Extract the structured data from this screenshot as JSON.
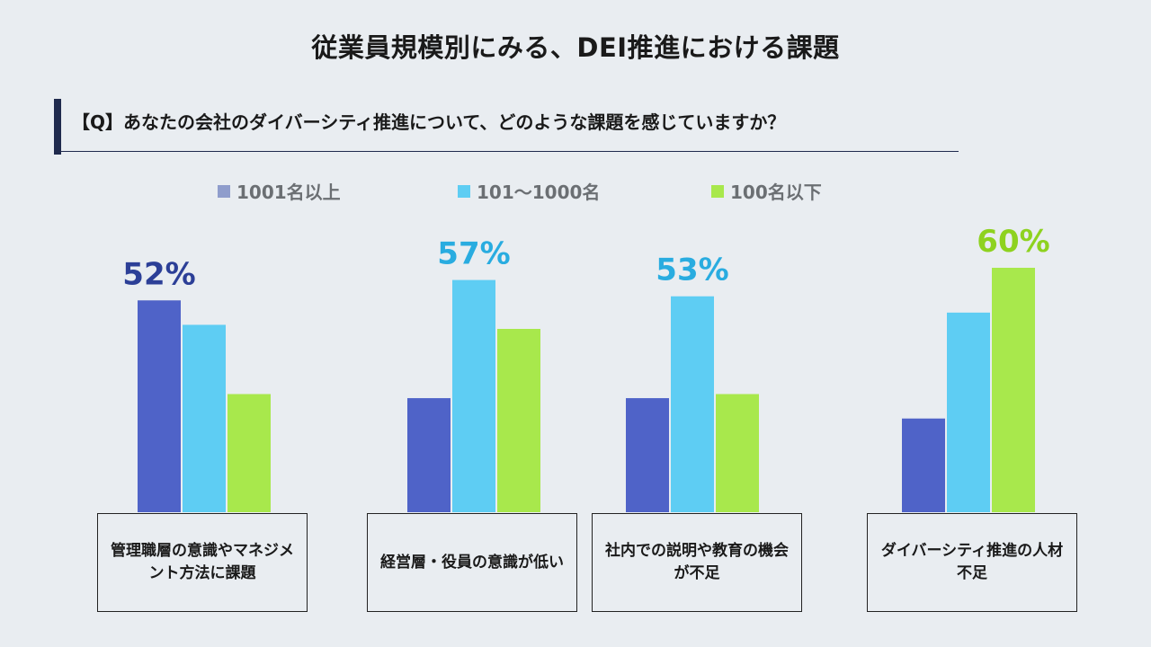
{
  "title": "従業員規模別にみる、DEI推進における課題",
  "question": "【Q】あなたの会社のダイバーシティ推進について、どのような課題を感じていますか？",
  "colors": {
    "background": "#e9edf1",
    "navy": "#1f2a4d"
  },
  "chart_data": {
    "type": "bar",
    "categories": [
      "管理職層の意識やマネジメント方法に課題",
      "経営層・役員の意識が低い",
      "社内での説明や教育の機会が不足",
      "ダイバーシティ推進の人材不足"
    ],
    "series": [
      {
        "name": "1001名以上",
        "color": "#4f63c8",
        "legend_color": "#8f9dcc",
        "values": [
          52,
          28,
          28,
          23
        ]
      },
      {
        "name": "101〜1000名",
        "color": "#5ecdf3",
        "legend_color": "#5ecdf3",
        "values": [
          46,
          57,
          53,
          49
        ]
      },
      {
        "name": "100名以下",
        "color": "#a8e84c",
        "legend_color": "#a8e84c",
        "values": [
          29,
          45,
          29,
          60
        ]
      }
    ],
    "highlight_labels": [
      {
        "category_index": 0,
        "series_index": 0,
        "text": "52%",
        "color": "#2c3f97"
      },
      {
        "category_index": 1,
        "series_index": 1,
        "text": "57%",
        "color": "#29ace0"
      },
      {
        "category_index": 2,
        "series_index": 1,
        "text": "53%",
        "color": "#29ace0"
      },
      {
        "category_index": 3,
        "series_index": 2,
        "text": "60%",
        "color": "#8ed21f"
      }
    ],
    "ylim": [
      0,
      60
    ],
    "grid": false,
    "legend_position": "top"
  }
}
